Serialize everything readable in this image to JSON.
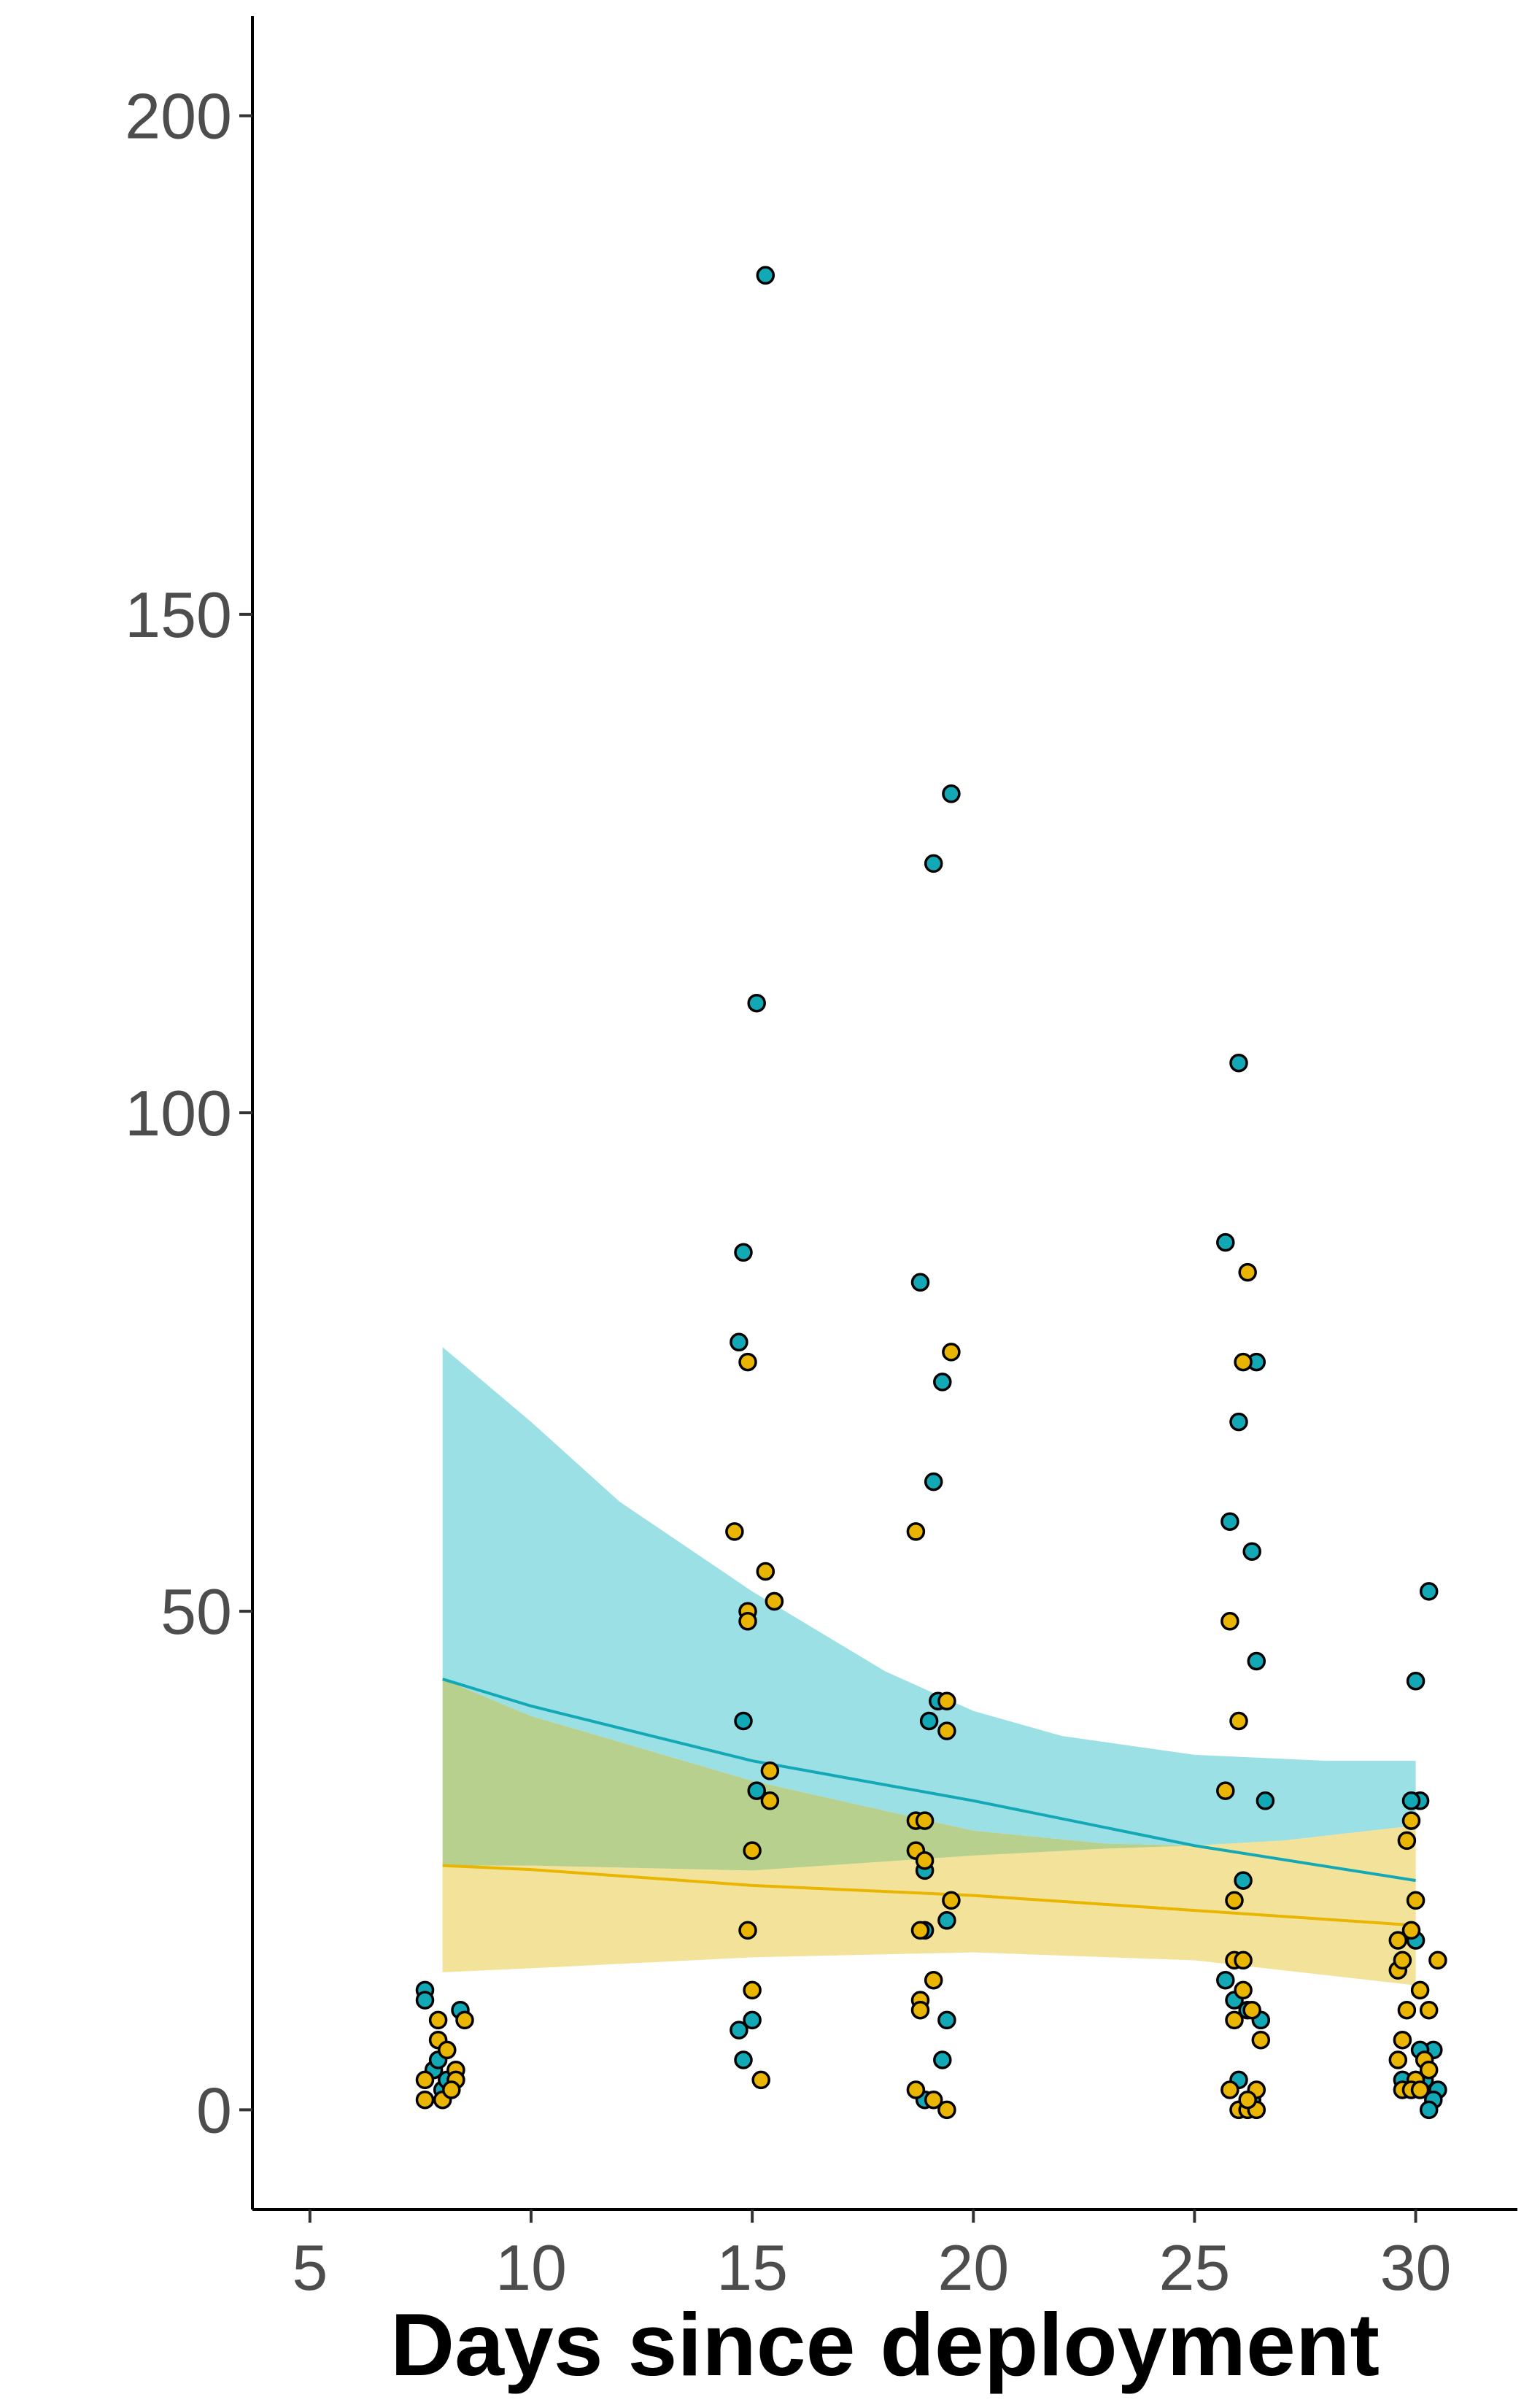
{
  "chart_data": {
    "type": "scatter",
    "title": "",
    "xlabel": "Days since deployment",
    "ylabel": "",
    "xlim": [
      3.7,
      32.3
    ],
    "ylim": [
      -10,
      210
    ],
    "xticks": [
      5,
      10,
      15,
      20,
      25,
      30
    ],
    "yticks": [
      0,
      50,
      100,
      150,
      200
    ],
    "grid": false,
    "legend": "none",
    "series": [
      {
        "color": "#12A8B5",
        "band_color": "#9BE0E5",
        "points": [
          [
            7.6,
            12
          ],
          [
            7.6,
            11
          ],
          [
            7.8,
            4
          ],
          [
            7.9,
            5
          ],
          [
            8.0,
            2
          ],
          [
            8.4,
            10
          ],
          [
            8.1,
            3
          ],
          [
            15.3,
            184
          ],
          [
            15.1,
            111
          ],
          [
            14.8,
            86
          ],
          [
            14.7,
            77
          ],
          [
            14.8,
            39
          ],
          [
            15.5,
            51
          ],
          [
            15.1,
            32
          ],
          [
            14.7,
            8
          ],
          [
            14.8,
            5
          ],
          [
            15.0,
            9
          ],
          [
            19.5,
            132
          ],
          [
            19.1,
            125
          ],
          [
            18.8,
            83
          ],
          [
            19.3,
            73
          ],
          [
            19.1,
            63
          ],
          [
            19.2,
            41
          ],
          [
            19.0,
            39
          ],
          [
            18.9,
            24
          ],
          [
            19.4,
            19
          ],
          [
            18.9,
            18
          ],
          [
            19.4,
            9
          ],
          [
            19.3,
            5
          ],
          [
            18.9,
            1
          ],
          [
            26.0,
            105
          ],
          [
            25.7,
            87
          ],
          [
            26.4,
            75
          ],
          [
            26.0,
            69
          ],
          [
            25.8,
            59
          ],
          [
            26.3,
            56
          ],
          [
            26.4,
            45
          ],
          [
            26.6,
            31
          ],
          [
            26.1,
            23
          ],
          [
            25.7,
            13
          ],
          [
            25.9,
            11
          ],
          [
            26.2,
            10
          ],
          [
            26.5,
            9
          ],
          [
            26.0,
            3
          ],
          [
            26.3,
            1
          ],
          [
            30.3,
            52
          ],
          [
            30.0,
            43
          ],
          [
            30.1,
            31
          ],
          [
            29.9,
            31
          ],
          [
            30.0,
            17
          ],
          [
            30.4,
            6
          ],
          [
            30.1,
            6
          ],
          [
            29.7,
            3
          ],
          [
            30.2,
            3
          ],
          [
            30.5,
            2
          ],
          [
            30.4,
            1
          ],
          [
            30.3,
            0
          ]
        ],
        "fit": [
          [
            8,
            43.2
          ],
          [
            10,
            40.5
          ],
          [
            15,
            35.0
          ],
          [
            20,
            31.0
          ],
          [
            25,
            26.5
          ],
          [
            30,
            23.0
          ]
        ],
        "band_lower": [
          [
            8,
            43.2
          ],
          [
            10,
            39.5
          ],
          [
            15,
            33.0
          ],
          [
            20,
            28.0
          ],
          [
            23,
            26.7
          ],
          [
            25,
            26.5
          ],
          [
            27,
            27.0
          ],
          [
            30,
            28.5
          ]
        ],
        "band_upper": [
          [
            8,
            76.5
          ],
          [
            10,
            69.0
          ],
          [
            12,
            61.0
          ],
          [
            15,
            52.0
          ],
          [
            18,
            44.0
          ],
          [
            20,
            40.0
          ],
          [
            22,
            37.5
          ],
          [
            25,
            35.6
          ],
          [
            28,
            35.0
          ],
          [
            30,
            35.0
          ]
        ]
      },
      {
        "color": "#E9B500",
        "band_color": "#F3E39A",
        "points": [
          [
            7.6,
            3
          ],
          [
            7.6,
            1
          ],
          [
            7.9,
            9
          ],
          [
            7.9,
            7
          ],
          [
            8.1,
            6
          ],
          [
            8.3,
            4
          ],
          [
            8.3,
            3
          ],
          [
            8.0,
            1
          ],
          [
            8.5,
            9
          ],
          [
            8.2,
            2
          ],
          [
            14.6,
            58
          ],
          [
            15.3,
            54
          ],
          [
            14.9,
            50
          ],
          [
            14.9,
            49
          ],
          [
            15.5,
            51
          ],
          [
            14.9,
            75
          ],
          [
            15.4,
            34
          ],
          [
            15.4,
            31
          ],
          [
            15.0,
            26
          ],
          [
            14.9,
            18
          ],
          [
            15.0,
            12
          ],
          [
            15.2,
            3
          ],
          [
            19.5,
            76
          ],
          [
            18.7,
            58
          ],
          [
            19.4,
            41
          ],
          [
            19.4,
            38
          ],
          [
            18.7,
            29
          ],
          [
            18.9,
            29
          ],
          [
            18.7,
            26
          ],
          [
            18.9,
            25
          ],
          [
            19.5,
            21
          ],
          [
            18.8,
            18
          ],
          [
            19.1,
            13
          ],
          [
            18.8,
            11
          ],
          [
            18.8,
            10
          ],
          [
            18.7,
            2
          ],
          [
            19.1,
            1
          ],
          [
            19.4,
            0
          ],
          [
            26.2,
            84
          ],
          [
            26.1,
            75
          ],
          [
            25.8,
            49
          ],
          [
            26.0,
            39
          ],
          [
            25.7,
            32
          ],
          [
            25.9,
            21
          ],
          [
            25.9,
            15
          ],
          [
            26.1,
            15
          ],
          [
            26.1,
            12
          ],
          [
            25.9,
            9
          ],
          [
            26.3,
            10
          ],
          [
            26.5,
            7
          ],
          [
            25.8,
            2
          ],
          [
            26.4,
            2
          ],
          [
            26.0,
            0
          ],
          [
            26.2,
            0
          ],
          [
            26.4,
            0
          ],
          [
            26.2,
            1
          ]
        ],
        "fit": [
          [
            8,
            24.5
          ],
          [
            10,
            24.1
          ],
          [
            15,
            22.5
          ],
          [
            20,
            21.5
          ],
          [
            25,
            20.0
          ],
          [
            30,
            18.5
          ]
        ],
        "band_lower": [
          [
            8,
            13.8
          ],
          [
            10,
            14.2
          ],
          [
            15,
            15.3
          ],
          [
            20,
            15.8
          ],
          [
            25,
            15.0
          ],
          [
            30,
            12.5
          ]
        ],
        "band_upper": [
          [
            8,
            24.5
          ],
          [
            10,
            24.5
          ],
          [
            15,
            24.0
          ],
          [
            20,
            25.5
          ],
          [
            23,
            26.2
          ],
          [
            25,
            26.5
          ],
          [
            27,
            27.0
          ],
          [
            30,
            28.5
          ]
        ]
      },
      {
        "color": "#E9B500",
        "band_color": "#F3E39A",
        "points": [
          [
            29.6,
            14
          ],
          [
            29.7,
            15
          ],
          [
            29.6,
            17
          ],
          [
            29.9,
            18
          ],
          [
            30.0,
            21
          ],
          [
            30.1,
            12
          ],
          [
            29.8,
            10
          ],
          [
            30.3,
            10
          ],
          [
            29.7,
            7
          ],
          [
            29.6,
            5
          ],
          [
            30.2,
            5
          ],
          [
            30.0,
            3
          ],
          [
            29.7,
            2
          ],
          [
            29.9,
            2
          ],
          [
            30.1,
            2
          ],
          [
            30.3,
            4
          ],
          [
            29.8,
            27
          ],
          [
            29.9,
            29
          ],
          [
            30.5,
            15
          ]
        ]
      }
    ]
  }
}
